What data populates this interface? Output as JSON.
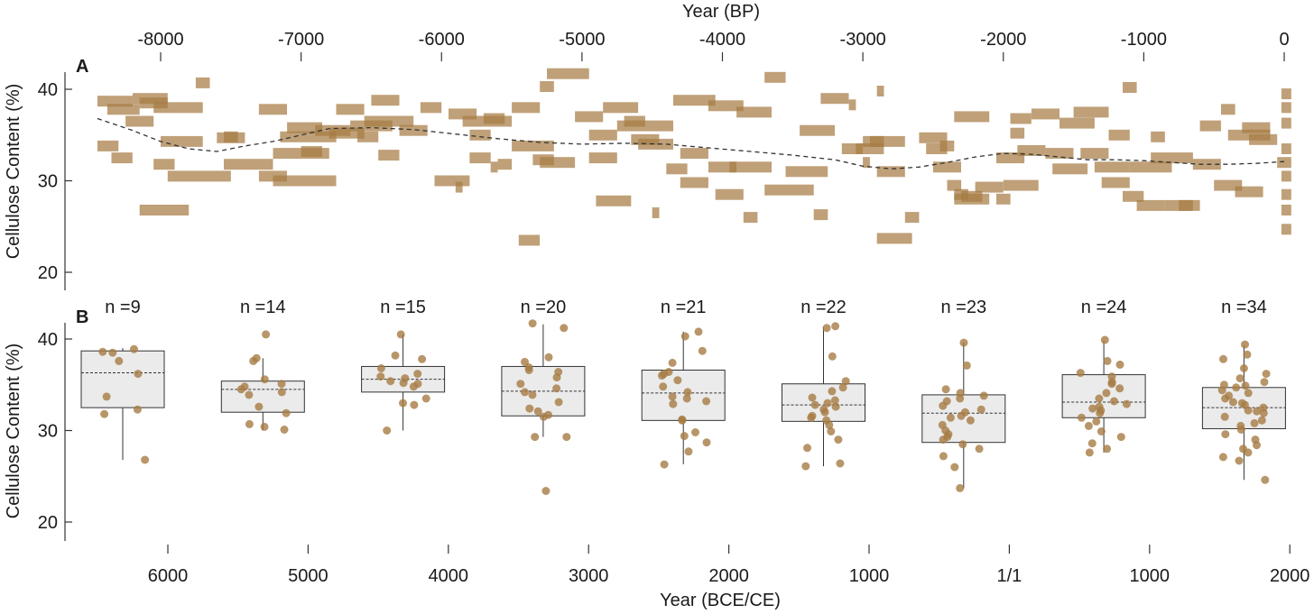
{
  "chart_data": [
    {
      "panel": "A",
      "type": "scatter",
      "mark": "horizontal-range-bars",
      "x_top_label": "Year (BP)",
      "x_top_ticks": [
        "-8000",
        "-7000",
        "-6000",
        "-5000",
        "-4000",
        "-3000",
        "-2000",
        "-1000",
        "0"
      ],
      "ylabel": "Cellulose Content (%)",
      "ylim": [
        18,
        43
      ],
      "y_ticks": [
        "20",
        "30",
        "40"
      ],
      "xlim_bp": [
        -8600,
        150
      ],
      "colors": {
        "bar": "#a67c44",
        "trend": "#333333"
      },
      "ranges": [
        [
          -8450,
          -8200,
          38.7
        ],
        [
          -8380,
          -8150,
          37.8
        ],
        [
          -8250,
          -8050,
          36.5
        ],
        [
          -8200,
          -7950,
          39.0
        ],
        [
          -8150,
          -7950,
          38.5
        ],
        [
          -8050,
          -7700,
          38.0
        ],
        [
          -8450,
          -8300,
          33.8
        ],
        [
          -8350,
          -8200,
          32.5
        ],
        [
          -8050,
          -7900,
          31.8
        ],
        [
          -8000,
          -7700,
          34.3
        ],
        [
          -7950,
          -7500,
          30.5
        ],
        [
          -8150,
          -7800,
          26.8
        ],
        [
          -7750,
          -7650,
          40.7
        ],
        [
          -7600,
          -7400,
          34.7
        ],
        [
          -7550,
          -7450,
          34.8
        ],
        [
          -7550,
          -7200,
          31.8
        ],
        [
          -7300,
          -7100,
          30.5
        ],
        [
          -7300,
          -7100,
          37.8
        ],
        [
          -7200,
          -6750,
          30.0
        ],
        [
          -7100,
          -6850,
          35.8
        ],
        [
          -7200,
          -6800,
          33.0
        ],
        [
          -7150,
          -6750,
          34.8
        ],
        [
          -7000,
          -6850,
          33.2
        ],
        [
          -6900,
          -6650,
          35.5
        ],
        [
          -6800,
          -6550,
          35.2
        ],
        [
          -6750,
          -6550,
          37.8
        ],
        [
          -6650,
          -6350,
          36.0
        ],
        [
          -6600,
          -6450,
          34.8
        ],
        [
          -6550,
          -6200,
          36.5
        ],
        [
          -6500,
          -6300,
          38.8
        ],
        [
          -6450,
          -6300,
          32.8
        ],
        [
          -6300,
          -6100,
          35.5
        ],
        [
          -6150,
          -6000,
          38.0
        ],
        [
          -6050,
          -5800,
          30.0
        ],
        [
          -5900,
          -5850,
          29.3
        ],
        [
          -5950,
          -5750,
          37.3
        ],
        [
          -5850,
          -5500,
          36.5
        ],
        [
          -5800,
          -5650,
          35.0
        ],
        [
          -5700,
          -5550,
          36.8
        ],
        [
          -5800,
          -5650,
          32.5
        ],
        [
          -5650,
          -5600,
          31.5
        ],
        [
          -5600,
          -5500,
          31.8
        ],
        [
          -5500,
          -5200,
          33.8
        ],
        [
          -5500,
          -5300,
          38.0
        ],
        [
          -5450,
          -5300,
          23.5
        ],
        [
          -5350,
          -5200,
          32.3
        ],
        [
          -5300,
          -5050,
          32.0
        ],
        [
          -5300,
          -5200,
          40.3
        ],
        [
          -5250,
          -4950,
          41.7
        ],
        [
          -5050,
          -4850,
          37.0
        ],
        [
          -4950,
          -4750,
          35.0
        ],
        [
          -4950,
          -4750,
          32.5
        ],
        [
          -4900,
          -4650,
          27.8
        ],
        [
          -4850,
          -4600,
          38.0
        ],
        [
          -4750,
          -4550,
          36.0
        ],
        [
          -4700,
          -4550,
          36.5
        ],
        [
          -4650,
          -4450,
          34.5
        ],
        [
          -4600,
          -4350,
          34.0
        ],
        [
          -4550,
          -4350,
          36.0
        ],
        [
          -4500,
          -4450,
          26.5
        ],
        [
          -4400,
          -4250,
          31.3
        ],
        [
          -4350,
          -4050,
          38.8
        ],
        [
          -4300,
          -4100,
          33.0
        ],
        [
          -4300,
          -4100,
          29.8
        ],
        [
          -4100,
          -3900,
          31.5
        ],
        [
          -4100,
          -3850,
          38.2
        ],
        [
          -4050,
          -3850,
          28.5
        ],
        [
          -3950,
          -3650,
          31.5
        ],
        [
          -3900,
          -3650,
          37.5
        ],
        [
          -3850,
          -3750,
          26.0
        ],
        [
          -3700,
          -3550,
          41.3
        ],
        [
          -3700,
          -3350,
          29.0
        ],
        [
          -3550,
          -3250,
          31.0
        ],
        [
          -3450,
          -3200,
          35.5
        ],
        [
          -3350,
          -3250,
          26.3
        ],
        [
          -3300,
          -3100,
          39.0
        ],
        [
          -3150,
          -3000,
          33.5
        ],
        [
          -3100,
          -3050,
          38.3
        ],
        [
          -3050,
          -2850,
          33.5
        ],
        [
          -3000,
          -2950,
          32.0
        ],
        [
          -3000,
          -2850,
          34.3
        ],
        [
          -2950,
          -2700,
          34.3
        ],
        [
          -2900,
          -2850,
          39.8
        ],
        [
          -2900,
          -2700,
          31.0
        ],
        [
          -2900,
          -2650,
          23.7
        ],
        [
          -2700,
          -2600,
          26.0
        ],
        [
          -2600,
          -2400,
          34.7
        ],
        [
          -2550,
          -2400,
          33.5
        ],
        [
          -2500,
          -2300,
          31.5
        ],
        [
          -2450,
          -2350,
          33.8
        ],
        [
          -2400,
          -2300,
          29.5
        ],
        [
          -2350,
          -2250,
          28.5
        ],
        [
          -2350,
          -2100,
          28.0
        ],
        [
          -2350,
          -2100,
          37.0
        ],
        [
          -2300,
          -2150,
          28.3
        ],
        [
          -2200,
          -2000,
          29.3
        ],
        [
          -2050,
          -1950,
          28.0
        ],
        [
          -2050,
          -1850,
          32.5
        ],
        [
          -2000,
          -1750,
          29.5
        ],
        [
          -1950,
          -1850,
          35.2
        ],
        [
          -1950,
          -1800,
          36.8
        ],
        [
          -1900,
          -1700,
          33.3
        ],
        [
          -1800,
          -1600,
          37.3
        ],
        [
          -1700,
          -1500,
          33.0
        ],
        [
          -1650,
          -1400,
          31.3
        ],
        [
          -1600,
          -1350,
          36.3
        ],
        [
          -1500,
          -1250,
          37.5
        ],
        [
          -1450,
          -1250,
          33.0
        ],
        [
          -1350,
          -1100,
          31.5
        ],
        [
          -1300,
          -1100,
          29.8
        ],
        [
          -1250,
          -1100,
          35.0
        ],
        [
          -1150,
          -1050,
          40.2
        ],
        [
          -1150,
          -1000,
          28.3
        ],
        [
          -1100,
          -800,
          31.5
        ],
        [
          -1050,
          -850,
          27.3
        ],
        [
          -950,
          -850,
          34.8
        ],
        [
          -950,
          -650,
          32.5
        ],
        [
          -850,
          -650,
          27.3
        ],
        [
          -750,
          -600,
          27.3
        ],
        [
          -650,
          -450,
          31.8
        ],
        [
          -600,
          -450,
          36.0
        ],
        [
          -500,
          -300,
          29.5
        ],
        [
          -450,
          -350,
          37.8
        ],
        [
          -400,
          -100,
          35.0
        ],
        [
          -350,
          -150,
          28.8
        ],
        [
          -300,
          -100,
          35.8
        ],
        [
          -250,
          -50,
          34.5
        ],
        [
          -50,
          50,
          32.0
        ],
        [
          -20,
          50,
          39.5
        ],
        [
          -20,
          50,
          38.0
        ],
        [
          -20,
          50,
          36.3
        ],
        [
          -20,
          50,
          33.5
        ],
        [
          -20,
          50,
          30.5
        ],
        [
          -20,
          50,
          28.5
        ],
        [
          -20,
          50,
          26.8
        ],
        [
          -20,
          50,
          24.7
        ]
      ],
      "trend": [
        [
          -8450,
          36.8
        ],
        [
          -8200,
          35.5
        ],
        [
          -8000,
          34.3
        ],
        [
          -7800,
          33.5
        ],
        [
          -7600,
          33.2
        ],
        [
          -7400,
          33.8
        ],
        [
          -7200,
          34.3
        ],
        [
          -7000,
          35.0
        ],
        [
          -6800,
          35.7
        ],
        [
          -6500,
          35.8
        ],
        [
          -6200,
          35.6
        ],
        [
          -5900,
          35.1
        ],
        [
          -5600,
          34.6
        ],
        [
          -5300,
          34.2
        ],
        [
          -5000,
          34.0
        ],
        [
          -4700,
          34.1
        ],
        [
          -4400,
          34.0
        ],
        [
          -4100,
          33.6
        ],
        [
          -3800,
          33.2
        ],
        [
          -3500,
          32.8
        ],
        [
          -3200,
          32.3
        ],
        [
          -3000,
          31.6
        ],
        [
          -2800,
          31.3
        ],
        [
          -2600,
          31.5
        ],
        [
          -2400,
          32.0
        ],
        [
          -2200,
          32.6
        ],
        [
          -2000,
          33.0
        ],
        [
          -1800,
          32.9
        ],
        [
          -1600,
          32.6
        ],
        [
          -1400,
          32.3
        ],
        [
          -1200,
          32.3
        ],
        [
          -1000,
          32.2
        ],
        [
          -800,
          32.0
        ],
        [
          -600,
          31.8
        ],
        [
          -400,
          31.8
        ],
        [
          -200,
          31.9
        ],
        [
          0,
          32.1
        ]
      ]
    },
    {
      "panel": "B",
      "type": "box",
      "xlabel": "Year (BCE/CE)",
      "x_bottom_ticks": [
        "6000",
        "5000",
        "4000",
        "3000",
        "2000",
        "1000",
        "1/1",
        "1000",
        "2000"
      ],
      "ylabel": "Cellulose Content (%)",
      "ylim": [
        18,
        43
      ],
      "y_ticks": [
        "20",
        "30",
        "40"
      ],
      "colors": {
        "box_fill": "#ebebeb",
        "point": "#a67c44"
      },
      "groups": [
        {
          "n_label": "n =9",
          "min": 26.8,
          "q1": 32.5,
          "median": 36.3,
          "q3": 38.7,
          "max": 39.0,
          "points": [
            38.9,
            38.6,
            37.6,
            36.2,
            33.7,
            32.3,
            31.8,
            26.8,
            38.5
          ]
        },
        {
          "n_label": "n =14",
          "min": 30.0,
          "q1": 32.0,
          "median": 34.5,
          "q3": 35.4,
          "max": 37.9,
          "points": [
            40.5,
            37.9,
            37.6,
            35.6,
            34.8,
            34.5,
            34.2,
            33.9,
            32.6,
            31.9,
            30.7,
            30.4,
            30.1,
            35.1
          ]
        },
        {
          "n_label": "n =15",
          "min": 30.0,
          "q1": 34.2,
          "median": 35.6,
          "q3": 37.0,
          "max": 40.5,
          "points": [
            40.5,
            38.2,
            37.8,
            36.8,
            36.2,
            35.9,
            35.7,
            35.4,
            35.2,
            35.1,
            34.8,
            33.5,
            33.0,
            32.8,
            30.0
          ]
        },
        {
          "n_label": "n =20",
          "min": 29.3,
          "q1": 31.6,
          "median": 34.3,
          "q3": 37.0,
          "max": 41.6,
          "points": [
            41.7,
            41.2,
            38.0,
            37.5,
            36.6,
            36.4,
            35.8,
            35.1,
            34.2,
            33.9,
            33.1,
            32.4,
            32.1,
            31.7,
            31.5,
            29.3,
            29.3,
            23.4,
            36.9,
            34.6
          ]
        },
        {
          "n_label": "n =21",
          "min": 26.3,
          "q1": 31.1,
          "median": 34.1,
          "q3": 36.6,
          "max": 40.8,
          "points": [
            40.8,
            40.3,
            38.7,
            37.4,
            36.4,
            36.2,
            35.5,
            34.8,
            34.2,
            33.7,
            33.2,
            32.9,
            31.2,
            31.1,
            29.8,
            29.4,
            28.7,
            27.7,
            26.3,
            36.0,
            33.5
          ]
        },
        {
          "n_label": "n =22",
          "min": 26.1,
          "q1": 31.0,
          "median": 32.8,
          "q3": 35.1,
          "max": 41.3,
          "points": [
            41.4,
            41.2,
            38.1,
            35.4,
            34.3,
            33.6,
            33.3,
            33.0,
            32.8,
            32.6,
            32.0,
            31.6,
            31.4,
            31.1,
            30.6,
            29.9,
            29.0,
            28.1,
            26.4,
            26.1,
            34.7,
            32.3
          ]
        },
        {
          "n_label": "n =23",
          "min": 23.7,
          "q1": 28.7,
          "median": 31.9,
          "q3": 33.9,
          "max": 39.6,
          "points": [
            39.6,
            37.1,
            34.5,
            34.1,
            33.8,
            33.2,
            32.7,
            32.3,
            32.0,
            31.6,
            31.1,
            30.6,
            30.0,
            29.3,
            29.0,
            28.5,
            28.0,
            27.2,
            26.0,
            23.7,
            33.5,
            31.4,
            29.6
          ]
        },
        {
          "n_label": "n =24",
          "min": 27.6,
          "q1": 31.4,
          "median": 33.1,
          "q3": 36.1,
          "max": 39.8,
          "points": [
            39.9,
            37.6,
            37.2,
            36.3,
            35.9,
            35.1,
            34.6,
            34.1,
            33.5,
            33.2,
            32.9,
            32.6,
            32.2,
            31.9,
            31.4,
            31.0,
            30.5,
            29.9,
            29.3,
            28.6,
            28.0,
            27.6,
            35.3,
            32.4
          ]
        },
        {
          "n_label": "n =34",
          "min": 24.6,
          "q1": 30.2,
          "median": 32.5,
          "q3": 34.7,
          "max": 39.3,
          "points": [
            39.4,
            38.3,
            37.8,
            36.8,
            36.2,
            35.7,
            35.3,
            35.0,
            34.7,
            34.4,
            34.1,
            33.8,
            33.5,
            33.1,
            32.8,
            32.5,
            32.2,
            31.9,
            31.5,
            31.1,
            30.8,
            30.5,
            30.1,
            29.6,
            29.0,
            28.4,
            28.0,
            27.6,
            27.1,
            26.7,
            24.6,
            34.9,
            33.0,
            32.1
          ]
        }
      ]
    }
  ],
  "labels": {
    "panel_a": "A",
    "panel_b": "B",
    "top_axis_title": "Year (BP)",
    "bottom_axis_title": "Year (BCE/CE)",
    "y_axis_title_a": "Cellulose Content (%)",
    "y_axis_title_b": "Cellulose Content (%)"
  }
}
